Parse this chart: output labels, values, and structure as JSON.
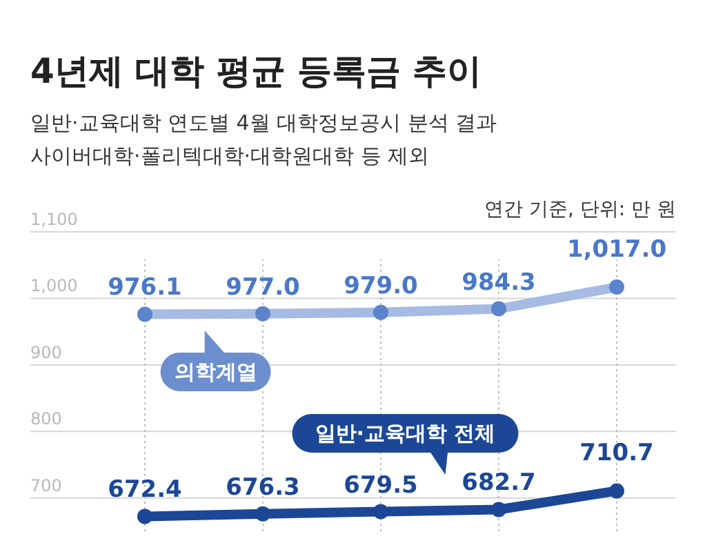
{
  "chart_data": {
    "type": "line",
    "title": "4년제 대학 평균 등록금 추이",
    "subtitle": "일반·교육대학 연도별 4월 대학정보공시 분석 결과\n사이버대학·폴리텍대학·대학원대학 등 제외",
    "annotations": [
      "연간 기준, 단위: 만 원"
    ],
    "categories": [
      null,
      null,
      null,
      null,
      null
    ],
    "series": [
      {
        "name": "의학계열",
        "color": "#5b84cc",
        "values": [
          976.1,
          977.0,
          979.0,
          984.3,
          1017.0
        ],
        "value_labels": [
          "976.1",
          "977.0",
          "979.0",
          "984.3",
          "1,017.0"
        ]
      },
      {
        "name": "일반·교육대학 전체",
        "color": "#1c4796",
        "values": [
          672.4,
          676.3,
          679.5,
          682.7,
          710.7
        ],
        "value_labels": [
          "672.4",
          "676.3",
          "679.5",
          "682.7",
          "710.7"
        ]
      }
    ],
    "ylim": [
      650,
      1100
    ],
    "yticks": [
      {
        "value": 700,
        "label": "700"
      },
      {
        "value": 800,
        "label": "800"
      },
      {
        "value": 900,
        "label": "900"
      },
      {
        "value": 1000,
        "label": "1,000"
      },
      {
        "value": 1100,
        "label": "1,100"
      }
    ],
    "grid": true,
    "marker": "circle",
    "line_style": "solid"
  }
}
